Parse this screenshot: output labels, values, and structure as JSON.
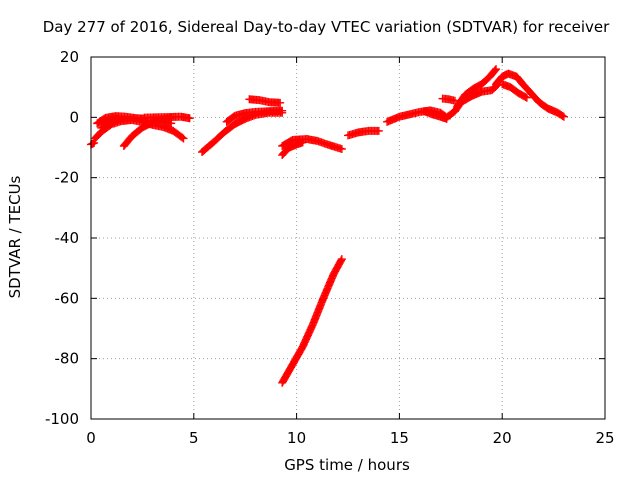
{
  "chart_data": {
    "type": "scatter",
    "title": "Day 277 of 2016, Sidereal Day-to-day VTEC variation (SDTVAR) for receiver",
    "xlabel": "GPS time / hours",
    "ylabel": "SDTVAR / TECUs",
    "xlim": [
      0,
      25
    ],
    "ylim": [
      -100,
      20
    ],
    "xticks": [
      0,
      5,
      10,
      15,
      20,
      25
    ],
    "yticks": [
      -100,
      -80,
      -60,
      -40,
      -20,
      0,
      20
    ],
    "xtick_labels": [
      "0",
      "5",
      "10",
      "15",
      "20",
      "25"
    ],
    "ytick_labels": [
      "-100",
      "-80",
      "-60",
      "-40",
      "-20",
      "0",
      "20"
    ],
    "grid": true,
    "marker": "plus",
    "color": "#ff0000",
    "series": [
      {
        "points": [
          [
            0.0,
            -9.0
          ],
          [
            0.15,
            -8.5
          ]
        ]
      },
      {
        "points": [
          [
            0.2,
            -7.0
          ],
          [
            0.5,
            -4.8
          ],
          [
            1.0,
            -2.3
          ],
          [
            1.5,
            -1.2
          ],
          [
            2.0,
            -0.9
          ],
          [
            2.5,
            -1.5
          ],
          [
            3.0,
            -2.5
          ],
          [
            3.5,
            -3.2
          ],
          [
            4.0,
            -4.5
          ],
          [
            4.5,
            -7.0
          ]
        ]
      },
      {
        "points": [
          [
            0.3,
            -2.0
          ],
          [
            0.7,
            -0.2
          ],
          [
            1.2,
            0.4
          ],
          [
            1.7,
            0.2
          ],
          [
            2.2,
            -0.3
          ],
          [
            2.6,
            -0.4
          ]
        ]
      },
      {
        "points": [
          [
            0.5,
            -3.5
          ],
          [
            0.9,
            -1.5
          ],
          [
            1.3,
            -0.3
          ]
        ]
      },
      {
        "points": [
          [
            1.6,
            -9.5
          ],
          [
            2.0,
            -6.2
          ],
          [
            2.5,
            -3.4
          ],
          [
            3.0,
            -1.6
          ],
          [
            3.5,
            -0.6
          ],
          [
            3.9,
            -0.2
          ]
        ]
      },
      {
        "points": [
          [
            2.6,
            -0.1
          ],
          [
            3.2,
            0.0
          ],
          [
            3.8,
            0.1
          ],
          [
            4.4,
            0.2
          ],
          [
            4.8,
            -0.3
          ]
        ]
      },
      {
        "points": [
          [
            3.0,
            -1.0
          ],
          [
            3.5,
            -1.6
          ],
          [
            3.9,
            -2.0
          ]
        ]
      },
      {
        "points": [
          [
            5.4,
            -11.5
          ],
          [
            6.0,
            -8.0
          ],
          [
            6.5,
            -4.8
          ],
          [
            7.0,
            -2.2
          ],
          [
            7.5,
            -0.5
          ],
          [
            8.0,
            0.8
          ],
          [
            8.6,
            1.5
          ],
          [
            9.3,
            1.5
          ]
        ]
      },
      {
        "points": [
          [
            6.6,
            -1.5
          ],
          [
            7.0,
            0.5
          ],
          [
            7.5,
            1.4
          ],
          [
            8.0,
            1.8
          ],
          [
            8.6,
            2.0
          ],
          [
            9.3,
            2.2
          ]
        ]
      },
      {
        "points": [
          [
            7.7,
            6.0
          ],
          [
            8.2,
            5.7
          ],
          [
            8.7,
            5.0
          ],
          [
            9.2,
            4.8
          ]
        ]
      },
      {
        "points": [
          [
            9.3,
            -9.5
          ],
          [
            9.8,
            -7.5
          ],
          [
            10.5,
            -7.2
          ],
          [
            11.0,
            -7.8
          ],
          [
            11.5,
            -9.0
          ],
          [
            12.2,
            -10.5
          ]
        ]
      },
      {
        "points": [
          [
            9.3,
            -12.5
          ],
          [
            9.6,
            -10.2
          ],
          [
            10.0,
            -9.0
          ],
          [
            10.3,
            -8.3
          ]
        ]
      },
      {
        "points": [
          [
            9.3,
            -88.0
          ],
          [
            9.8,
            -82.0
          ],
          [
            10.3,
            -76.0
          ],
          [
            10.8,
            -68.5
          ],
          [
            11.3,
            -60.0
          ],
          [
            11.8,
            -52.0
          ],
          [
            12.2,
            -47.0
          ]
        ]
      },
      {
        "points": [
          [
            12.5,
            -6.0
          ],
          [
            13.0,
            -5.0
          ],
          [
            13.5,
            -4.5
          ],
          [
            14.0,
            -4.5
          ]
        ]
      },
      {
        "points": [
          [
            14.4,
            -1.5
          ],
          [
            15.0,
            0.2
          ],
          [
            15.5,
            1.0
          ],
          [
            16.0,
            1.8
          ],
          [
            16.5,
            2.3
          ],
          [
            17.0,
            1.5
          ],
          [
            17.3,
            0.0
          ],
          [
            17.7,
            2.0
          ],
          [
            18.0,
            5.0
          ],
          [
            18.5,
            7.0
          ],
          [
            19.0,
            8.5
          ],
          [
            19.5,
            9.0
          ],
          [
            19.8,
            11.0
          ]
        ]
      },
      {
        "points": [
          [
            16.2,
            2.0
          ],
          [
            16.6,
            1.0
          ],
          [
            17.0,
            0.2
          ],
          [
            17.3,
            -0.5
          ]
        ]
      },
      {
        "points": [
          [
            17.1,
            6.2
          ],
          [
            17.4,
            6.0
          ],
          [
            17.7,
            5.5
          ]
        ]
      },
      {
        "points": [
          [
            17.8,
            3.5
          ],
          [
            18.2,
            7.5
          ],
          [
            18.6,
            9.5
          ],
          [
            19.0,
            11.0
          ],
          [
            19.4,
            13.5
          ],
          [
            19.7,
            16.0
          ]
        ]
      },
      {
        "points": [
          [
            19.7,
            11.0
          ],
          [
            20.0,
            13.5
          ],
          [
            20.3,
            14.5
          ],
          [
            20.7,
            13.5
          ],
          [
            21.0,
            11.0
          ],
          [
            21.4,
            8.0
          ],
          [
            21.8,
            5.0
          ],
          [
            22.2,
            3.0
          ],
          [
            22.7,
            1.5
          ],
          [
            23.0,
            0.2
          ]
        ]
      },
      {
        "points": [
          [
            20.0,
            11.0
          ],
          [
            20.4,
            10.0
          ],
          [
            20.8,
            8.0
          ],
          [
            21.2,
            6.5
          ]
        ]
      }
    ]
  }
}
